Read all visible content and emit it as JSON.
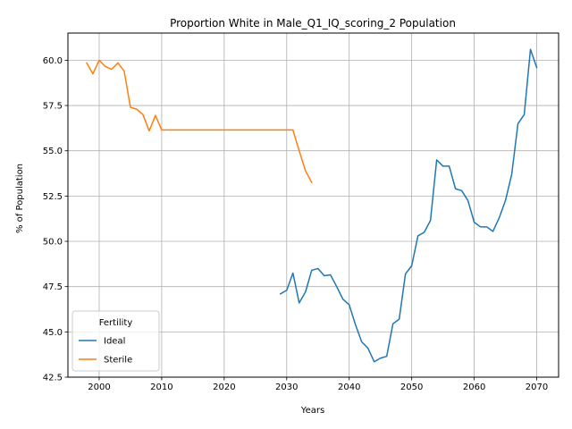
{
  "chart_data": {
    "type": "line",
    "title": "Proportion White in Male_Q1_IQ_scoring_2 Population",
    "xlabel": "Years",
    "ylabel": "% of Population",
    "xlim": [
      1995,
      2073.5
    ],
    "ylim": [
      42.5,
      61.5
    ],
    "xticks": [
      2000,
      2010,
      2020,
      2030,
      2040,
      2050,
      2060,
      2070
    ],
    "yticks": [
      42.5,
      45.0,
      47.5,
      50.0,
      52.5,
      55.0,
      57.5,
      60.0
    ],
    "xtick_labels": [
      "2000",
      "2010",
      "2020",
      "2030",
      "2040",
      "2050",
      "2060",
      "2070"
    ],
    "ytick_labels": [
      "42.5",
      "45.0",
      "47.5",
      "50.0",
      "52.5",
      "55.0",
      "57.5",
      "60.0"
    ],
    "grid": true,
    "legend": {
      "title": "Fertility",
      "placement": "lower-left"
    },
    "series": [
      {
        "name": "Ideal",
        "color": "#1f77b4",
        "x": [
          2029,
          2030,
          2031,
          2032,
          2033,
          2034,
          2035,
          2036,
          2037,
          2038,
          2039,
          2040,
          2041,
          2042,
          2043,
          2044,
          2045,
          2046,
          2047,
          2048,
          2049,
          2050,
          2051,
          2052,
          2053,
          2054,
          2055,
          2056,
          2057,
          2058,
          2059,
          2060,
          2061,
          2062,
          2063,
          2064,
          2065,
          2066,
          2067,
          2068,
          2069,
          2070
        ],
        "values": [
          47.1,
          47.3,
          48.25,
          46.6,
          47.2,
          48.4,
          48.5,
          48.1,
          48.15,
          47.5,
          46.8,
          46.5,
          45.4,
          44.45,
          44.1,
          43.35,
          43.55,
          43.65,
          45.45,
          45.7,
          48.2,
          48.65,
          50.3,
          50.5,
          51.15,
          54.5,
          54.15,
          54.15,
          52.9,
          52.8,
          52.25,
          51.05,
          50.8,
          50.8,
          50.55,
          51.3,
          52.25,
          53.7,
          56.5,
          57.0,
          60.6,
          59.6
        ]
      },
      {
        "name": "Sterile",
        "color": "#ff7f0e",
        "x": [
          1998,
          1999,
          2000,
          2001,
          2002,
          2003,
          2004,
          2005,
          2006,
          2007,
          2008,
          2009,
          2010,
          2011,
          2012,
          2013,
          2014,
          2015,
          2016,
          2017,
          2018,
          2019,
          2020,
          2021,
          2022,
          2023,
          2024,
          2025,
          2026,
          2027,
          2028,
          2029,
          2030,
          2031,
          2032,
          2033,
          2034
        ],
        "values": [
          59.85,
          59.25,
          60.0,
          59.65,
          59.5,
          59.85,
          59.4,
          57.4,
          57.3,
          57.0,
          56.1,
          56.95,
          56.15,
          56.15,
          56.15,
          56.15,
          56.15,
          56.15,
          56.15,
          56.15,
          56.15,
          56.15,
          56.15,
          56.15,
          56.15,
          56.15,
          56.15,
          56.15,
          56.15,
          56.15,
          56.15,
          56.15,
          56.15,
          56.15,
          55.0,
          53.9,
          53.25
        ]
      }
    ]
  }
}
